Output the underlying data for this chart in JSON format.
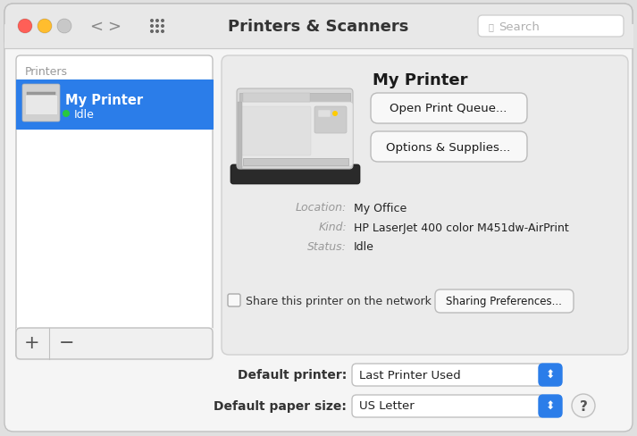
{
  "bg_color": "#e0e0e0",
  "window_bg": "#f5f5f5",
  "title_bar_bg": "#e8e8e8",
  "title": "Printers & Scanners",
  "search_placeholder": "Search",
  "traffic_lights": [
    "#ff5f57",
    "#ffbd2e",
    "#c8c8c8"
  ],
  "printers_label": "Printers",
  "printer_name": "My Printer",
  "printer_status": "Idle",
  "printer_status_color": "#28c840",
  "printer_list_bg": "#ffffff",
  "printer_selected_bg": "#2b7de9",
  "printer_selected_text": "#ffffff",
  "btn1_text": "Open Print Queue...",
  "btn2_text": "Options & Supplies...",
  "location_label": "Location:",
  "location_value": "My Office",
  "kind_label": "Kind:",
  "kind_value": "HP LaserJet 400 color M451dw-AirPrint",
  "status_label": "Status:",
  "status_value": "Idle",
  "share_text": "Share this printer on the network",
  "sharing_btn": "Sharing Preferences...",
  "default_printer_label": "Default printer:",
  "default_printer_value": "Last Printer Used",
  "default_paper_label": "Default paper size:",
  "default_paper_value": "US Letter",
  "panel_bg": "#ebebeb",
  "btn_bg": "#f8f8f8",
  "btn_border": "#bbbbbb",
  "blue_btn": "#2b7de9",
  "label_color": "#999999",
  "value_color": "#222222",
  "figsize": [
    7.13,
    4.89
  ],
  "dpi": 100
}
